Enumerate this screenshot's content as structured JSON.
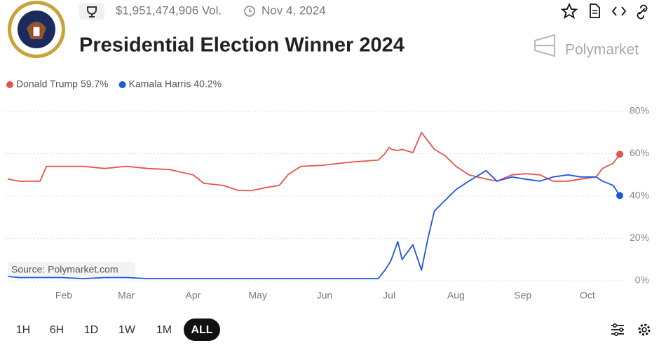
{
  "header": {
    "volume": "$1,951,474,906 Vol.",
    "date": "Nov 4, 2024",
    "brand": "Polymarket"
  },
  "chart_data": {
    "type": "line",
    "title": "Presidential Election Winner 2024",
    "source": "Source: Polymarket.com",
    "x": [
      5,
      10,
      20,
      23,
      30,
      40,
      50,
      60,
      70,
      80,
      91,
      96,
      105,
      112,
      118,
      125,
      131,
      135,
      141,
      151,
      164,
      177,
      180,
      182,
      183,
      186,
      188,
      193,
      197,
      200,
      203,
      208,
      213,
      219,
      227,
      232,
      239,
      245,
      252,
      258,
      265,
      271,
      278,
      281,
      286,
      289
    ],
    "xlim": [
      4,
      289
    ],
    "xticks": [
      {
        "value": 31,
        "label": "Feb"
      },
      {
        "value": 60,
        "label": "Mar"
      },
      {
        "value": 91,
        "label": "Apr"
      },
      {
        "value": 121,
        "label": "May"
      },
      {
        "value": 152,
        "label": "Jun"
      },
      {
        "value": 182,
        "label": "Jul"
      },
      {
        "value": 213,
        "label": "Aug"
      },
      {
        "value": 244,
        "label": "Sep"
      },
      {
        "value": 274,
        "label": "Oct"
      }
    ],
    "ylim": [
      0,
      80
    ],
    "yticks": [
      {
        "value": 0,
        "label": "0%"
      },
      {
        "value": 20,
        "label": "20%"
      },
      {
        "value": 40,
        "label": "40%"
      },
      {
        "value": 60,
        "label": "60%"
      },
      {
        "value": 80,
        "label": "80%"
      }
    ],
    "grid": true,
    "series": [
      {
        "name": "Donald Trump",
        "color": "#e5534b",
        "current": {
          "value": 59.7,
          "label": "59.7%"
        },
        "values": [
          48,
          47,
          47,
          54,
          54,
          54,
          53,
          54,
          53,
          52.5,
          50,
          46,
          45,
          42.6,
          42.5,
          44,
          45,
          50,
          54,
          54.5,
          56,
          57,
          60,
          63,
          62,
          61.5,
          62,
          60.5,
          70,
          66,
          62,
          59,
          54,
          50,
          48,
          47,
          50,
          50.5,
          50,
          47,
          47,
          48,
          49,
          53,
          55.5,
          59.7
        ]
      },
      {
        "name": "Kamala Harris",
        "color": "#1f55e0",
        "current": {
          "value": 40.2,
          "label": "40.2%"
        },
        "values": [
          2,
          1.5,
          1.5,
          1.5,
          1.5,
          1,
          1.5,
          1.5,
          1,
          1,
          1,
          1,
          1,
          1,
          1,
          1,
          1,
          1,
          1,
          1,
          1,
          1,
          5,
          8,
          10,
          18.5,
          10,
          17,
          5,
          20,
          33,
          38,
          43,
          47,
          52,
          47,
          49,
          48,
          47,
          49,
          50,
          49,
          49,
          47,
          45,
          40.2
        ]
      }
    ]
  },
  "controls": {
    "ranges": [
      "1H",
      "6H",
      "1D",
      "1W",
      "1M",
      "ALL"
    ]
  }
}
